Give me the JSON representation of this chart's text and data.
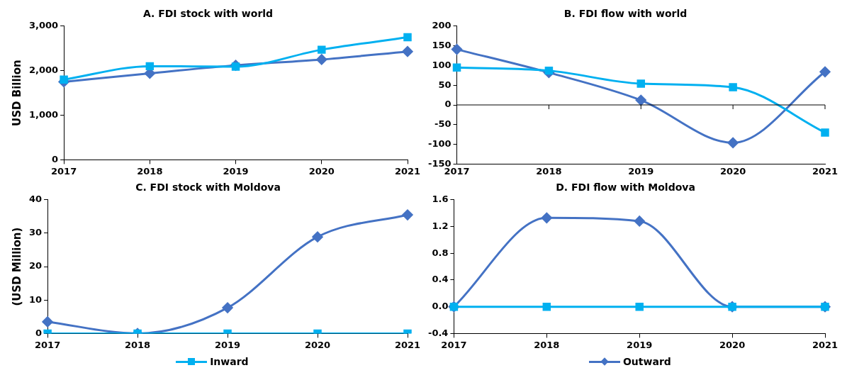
{
  "chart_data": [
    {
      "type": "line",
      "title": "A. FDI stock with world",
      "ylabel": "USD Billion",
      "categories": [
        "2017",
        "2018",
        "2019",
        "2020",
        "2021"
      ],
      "ylim": [
        0,
        3000
      ],
      "yticks": [
        0,
        {
          "value": 1000,
          "label": "1,000"
        },
        {
          "value": 2000,
          "label": "2,000"
        },
        {
          "value": 3000,
          "label": "3,000"
        }
      ],
      "grid": false,
      "legend": "bottom",
      "series": [
        {
          "name": "Inward",
          "color": "#00b0f0",
          "marker": "square",
          "values": [
            1800,
            2100,
            2090,
            2470,
            2750
          ]
        },
        {
          "name": "Outward",
          "color": "#4472c4",
          "marker": "diamond",
          "values": [
            1750,
            1940,
            2120,
            2250,
            2430
          ]
        }
      ]
    },
    {
      "type": "line",
      "title": "B. FDI flow with world",
      "categories": [
        "2017",
        "2018",
        "2019",
        "2020",
        "2021"
      ],
      "ylim": [
        -150,
        200
      ],
      "yticks": [
        -150,
        -100,
        -50,
        0,
        50,
        100,
        150,
        200
      ],
      "grid": false,
      "ref_lines": [
        {
          "axis": "y",
          "value": 0,
          "color": "#000000"
        }
      ],
      "series": [
        {
          "color": "#00b0f0",
          "marker": "square",
          "values": [
            95,
            87,
            54,
            45,
            -70
          ]
        },
        {
          "color": "#4472c4",
          "marker": "diamond",
          "values": [
            141,
            82,
            12,
            -96,
            84
          ]
        }
      ]
    },
    {
      "type": "line",
      "title": "C. FDI stock with Moldova",
      "ylabel": "(USD Million)",
      "categories": [
        "2017",
        "2018",
        "2019",
        "2020",
        "2021"
      ],
      "ylim": [
        0,
        40
      ],
      "yticks": [
        0,
        10,
        20,
        30,
        40
      ],
      "grid": false,
      "series": [
        {
          "color": "#00b0f0",
          "marker": "square",
          "values": [
            0,
            0,
            0,
            0,
            0
          ]
        },
        {
          "color": "#4472c4",
          "marker": "diamond",
          "values": [
            3.5,
            0,
            7.7,
            28.9,
            35.5
          ]
        }
      ]
    },
    {
      "type": "line",
      "title": "D. FDI flow with Moldova",
      "categories": [
        "2017",
        "2018",
        "2019",
        "2020",
        "2021"
      ],
      "ylim": [
        -0.4,
        1.6
      ],
      "yticks": [
        -0.4,
        {
          "value": 0,
          "label": "0.0"
        },
        0.4,
        0.8,
        1.2,
        1.6
      ],
      "grid": false,
      "series": [
        {
          "color": "#00b0f0",
          "marker": "square",
          "values": [
            0,
            0,
            0,
            0,
            0
          ]
        },
        {
          "color": "#4472c4",
          "marker": "diamond",
          "values": [
            0,
            1.33,
            1.28,
            0,
            0
          ]
        }
      ]
    }
  ]
}
